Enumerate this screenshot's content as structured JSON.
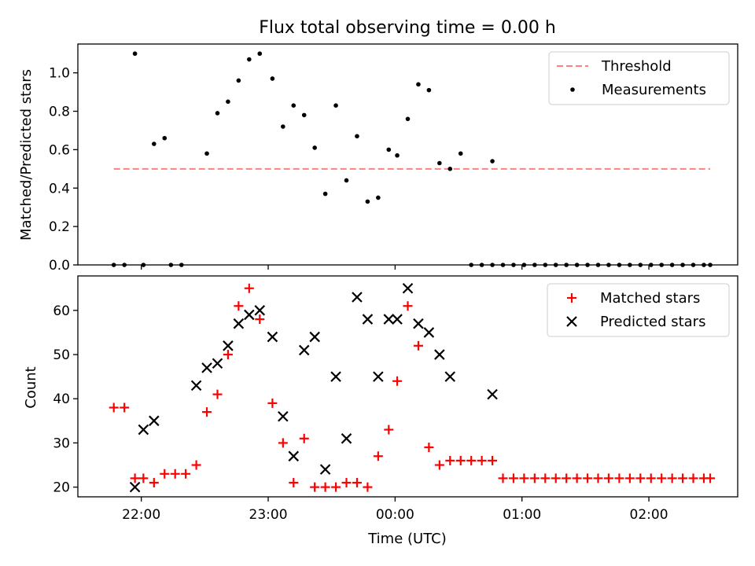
{
  "title": "Flux total observing time = 0.00 h",
  "colors": {
    "threshold": "#ff7f7f",
    "measurements": "#000000",
    "matched": "#ff0000",
    "predicted": "#000000"
  },
  "chart_data": [
    {
      "type": "scatter",
      "ylabel": "Matched/Predicted stars",
      "xlim_hours": [
        21.5,
        26.7
      ],
      "ylim": [
        0,
        1.15
      ],
      "yticks": [
        0.0,
        0.2,
        0.4,
        0.6,
        0.8,
        1.0
      ],
      "ytick_labels": [
        "0.0",
        "0.2",
        "0.4",
        "0.6",
        "0.8",
        "1.0"
      ],
      "grid": false,
      "legend_position": "top-right",
      "legend": [
        "Threshold",
        "Measurements"
      ],
      "threshold": {
        "name": "Threshold",
        "value": 0.5,
        "x_range": [
          "21:47",
          "02:29"
        ],
        "style": "dashed"
      },
      "series": [
        {
          "name": "Measurements",
          "marker": "dot",
          "x": [
            "21:47",
            "21:52",
            "22:01",
            "22:14",
            "22:19",
            "21:57",
            "22:06",
            "22:11",
            "22:31",
            "22:36",
            "22:41",
            "22:46",
            "22:51",
            "22:56",
            "23:02",
            "23:07",
            "23:12",
            "23:17",
            "23:22",
            "23:27",
            "23:32",
            "23:37",
            "23:42",
            "23:47",
            "23:52",
            "23:57",
            "00:01",
            "00:06",
            "00:11",
            "00:16",
            "00:21",
            "00:26",
            "00:31",
            "00:36",
            "00:41",
            "00:46",
            "00:51",
            "00:56",
            "01:01",
            "01:06",
            "01:11",
            "01:16",
            "01:21",
            "01:26",
            "01:31",
            "01:36",
            "01:41",
            "01:46",
            "01:51",
            "01:56",
            "02:01",
            "02:06",
            "02:11",
            "02:16",
            "02:21",
            "02:26",
            "02:29"
          ],
          "y": [
            0.0,
            0.0,
            0.0,
            0.0,
            0.0,
            1.1,
            0.63,
            0.66,
            0.58,
            0.79,
            0.85,
            0.96,
            1.07,
            1.1,
            0.97,
            0.72,
            0.83,
            0.78,
            0.61,
            0.37,
            0.83,
            0.44,
            0.67,
            0.33,
            0.35,
            0.6,
            0.57,
            0.76,
            0.94,
            0.91,
            0.53,
            0.5,
            0.58,
            0.0,
            0.0,
            0.0,
            0.0,
            0.0,
            0.0,
            0.0,
            0.0,
            0.0,
            0.0,
            0.0,
            0.0,
            0.0,
            0.0,
            0.0,
            0.0,
            0.0,
            0.0,
            0.0,
            0.0,
            0.0,
            0.0,
            0.0,
            0.0
          ]
        },
        {
          "name": "",
          "marker": "dot",
          "x": [
            "00:46"
          ],
          "y": [
            0.54
          ]
        }
      ]
    },
    {
      "type": "scatter",
      "ylabel": "Count",
      "xlabel": "Time (UTC)",
      "xlim_hours": [
        21.5,
        26.7
      ],
      "ylim": [
        17.8,
        67.8
      ],
      "yticks": [
        20,
        30,
        40,
        50,
        60
      ],
      "ytick_labels": [
        "20",
        "30",
        "40",
        "50",
        "60"
      ],
      "xticks": [
        "22:00",
        "23:00",
        "00:00",
        "01:00",
        "02:00"
      ],
      "grid": false,
      "legend_position": "top-right",
      "legend": [
        "Matched stars",
        "Predicted stars"
      ],
      "series": [
        {
          "name": "Matched stars",
          "marker": "plus",
          "x": [
            "21:47",
            "21:52",
            "21:57",
            "22:01",
            "22:06",
            "22:11",
            "22:16",
            "22:21",
            "22:26",
            "22:31",
            "22:36",
            "22:41",
            "22:46",
            "22:51",
            "22:56",
            "23:02",
            "23:07",
            "23:12",
            "23:17",
            "23:22",
            "23:27",
            "23:32",
            "23:37",
            "23:42",
            "23:47",
            "23:52",
            "23:57",
            "00:01",
            "00:06",
            "00:11",
            "00:16",
            "00:21",
            "00:26",
            "00:31",
            "00:36",
            "00:41",
            "00:46",
            "00:51",
            "00:56",
            "01:01",
            "01:06",
            "01:11",
            "01:16",
            "01:21",
            "01:26",
            "01:31",
            "01:36",
            "01:41",
            "01:46",
            "01:51",
            "01:56",
            "02:01",
            "02:06",
            "02:11",
            "02:16",
            "02:21",
            "02:26",
            "02:29"
          ],
          "y": [
            38,
            38,
            22,
            22,
            21,
            23,
            23,
            23,
            25,
            37,
            41,
            50,
            61,
            65,
            58,
            39,
            30,
            21,
            31,
            20,
            20,
            20,
            21,
            21,
            20,
            27,
            33,
            44,
            61,
            52,
            29,
            25,
            26,
            26,
            26,
            26,
            26,
            22,
            22,
            22,
            22,
            22,
            22,
            22,
            22,
            22,
            22,
            22,
            22,
            22,
            22,
            22,
            22,
            22,
            22,
            22,
            22,
            22
          ]
        },
        {
          "name": "Predicted stars",
          "marker": "x",
          "x": [
            "21:57",
            "22:01",
            "22:06",
            "22:26",
            "22:31",
            "22:36",
            "22:41",
            "22:46",
            "22:51",
            "22:56",
            "23:02",
            "23:07",
            "23:12",
            "23:17",
            "23:22",
            "23:27",
            "23:32",
            "23:37",
            "23:42",
            "23:47",
            "23:52",
            "23:57",
            "00:01",
            "00:06",
            "00:11",
            "00:16",
            "00:21",
            "00:26",
            "00:46"
          ],
          "y": [
            20,
            33,
            35,
            43,
            47,
            48,
            52,
            57,
            59,
            60,
            54,
            36,
            27,
            51,
            54,
            24,
            45,
            31,
            63,
            58,
            45,
            58,
            58,
            65,
            57,
            55,
            50,
            45,
            41
          ]
        }
      ]
    }
  ]
}
